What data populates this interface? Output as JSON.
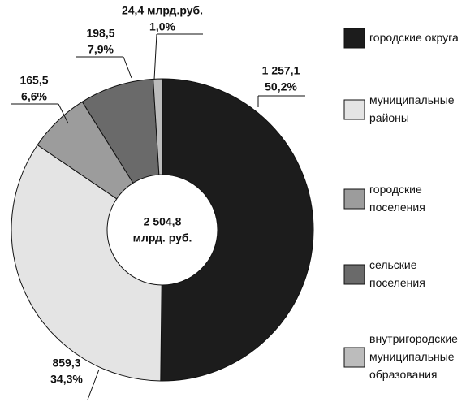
{
  "chart_data": {
    "type": "donut",
    "categories": [
      "городские округа",
      "муниципальные\nрайоны",
      "городские\nпоселения",
      "сельские\nпоселения",
      "внутригородские\nмуниципальные\nобразования"
    ],
    "values": [
      1257.1,
      859.3,
      165.5,
      198.5,
      24.4
    ],
    "value_labels": [
      "1 257,1",
      "859,3",
      "165,5",
      "198,5",
      "24,4 млрд.руб."
    ],
    "shares": [
      50.2,
      34.3,
      6.6,
      7.9,
      1.0
    ],
    "share_labels": [
      "50,2%",
      "34,3%",
      "6,6%",
      "7,9%",
      "1,0%"
    ],
    "colors": [
      "#1c1c1c",
      "#e4e4e4",
      "#9c9c9c",
      "#6a6a6a",
      "#bcbcbc"
    ],
    "total": 2504.8,
    "total_label": "2 504,8",
    "total_unit": "млрд. руб.",
    "legend": "right"
  }
}
